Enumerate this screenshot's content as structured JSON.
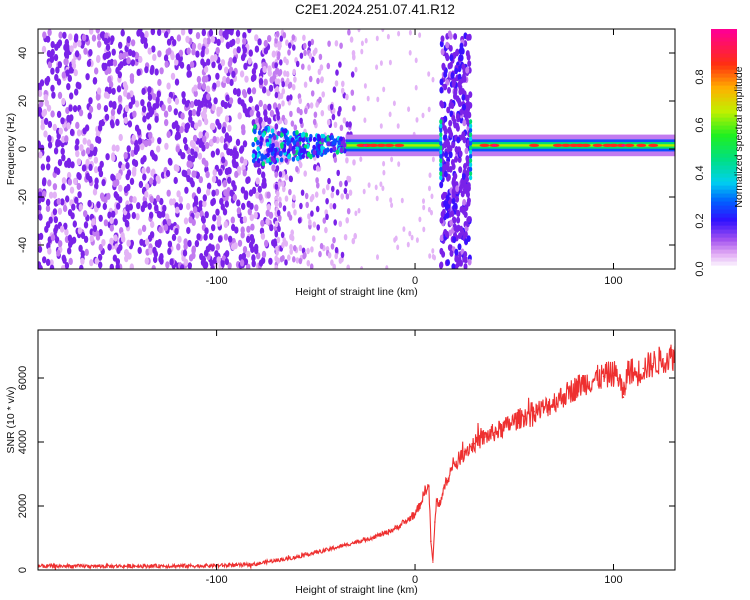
{
  "title": "C2E1.2024.251.07.41.R12",
  "colors": {
    "snr_line": "#ee3030",
    "spectrum_purple": "#7a22e8",
    "colormap": [
      "#ffffff",
      "#e3b3f6",
      "#c27bf0",
      "#7a22e8",
      "#3a10ff",
      "#0a50ff",
      "#00d8e8",
      "#00e070",
      "#a8f000",
      "#ff9400",
      "#ff2a1e",
      "#ff0090"
    ]
  },
  "chart_data": [
    {
      "type": "heatmap",
      "xlabel": "Height of straight line (km)",
      "ylabel": "Frequency (Hz)",
      "xlim": [
        -190,
        131
      ],
      "ylim": [
        -50,
        50
      ],
      "x_ticks": [
        -100,
        0,
        100
      ],
      "y_ticks": [
        -40,
        -20,
        0,
        20,
        40
      ],
      "grid": false,
      "colorbar": {
        "label": "Normalized spectral amplitude",
        "range": [
          0,
          1
        ],
        "ticks": [
          0.0,
          0.2,
          0.4,
          0.6,
          0.8
        ]
      },
      "dense_noise_x_range": [
        -190,
        -70
      ],
      "fading_noise_x_range": [
        -70,
        -30
      ],
      "dense_noise_band": {
        "x_range": [
          13,
          28
        ],
        "y_range": [
          -50,
          48
        ]
      },
      "signal_band": {
        "x_range": [
          -82,
          131
        ],
        "center_hz": 1.5,
        "half_width_hz": 2.5
      },
      "signal_break": {
        "x_range": [
          13,
          28
        ]
      }
    },
    {
      "type": "line",
      "xlabel": "Height of straight line (km)",
      "ylabel": "SNR (10 * v/v)",
      "xlim": [
        -190,
        131
      ],
      "ylim": [
        0,
        7500
      ],
      "x_ticks": [
        -100,
        0,
        100
      ],
      "y_ticks": [
        0,
        2000,
        4000,
        6000
      ],
      "grid": false,
      "series": [
        {
          "x": [
            -190,
            -150,
            -110,
            -90,
            -80,
            -75,
            -70,
            -65,
            -60,
            -55,
            -50,
            -45,
            -40,
            -35,
            -30,
            -25,
            -20,
            -15,
            -10,
            -5,
            0,
            3,
            5,
            7,
            8,
            9,
            10,
            11,
            12,
            14,
            16,
            18,
            20,
            25,
            30,
            35,
            40,
            45,
            50,
            55,
            60,
            65,
            70,
            75,
            80,
            85,
            90,
            95,
            100,
            103,
            105,
            107,
            109,
            111,
            115,
            120,
            125,
            131
          ],
          "y": [
            120,
            120,
            130,
            150,
            180,
            250,
            300,
            350,
            400,
            480,
            550,
            620,
            700,
            780,
            870,
            950,
            1050,
            1150,
            1300,
            1500,
            1750,
            2100,
            2500,
            2600,
            900,
            250,
            1500,
            2200,
            2000,
            2400,
            2800,
            3100,
            3300,
            3700,
            3950,
            4150,
            4300,
            4450,
            4650,
            4800,
            4950,
            5050,
            5250,
            5450,
            5650,
            5850,
            5950,
            6050,
            6150,
            6000,
            5400,
            6200,
            6250,
            6100,
            6300,
            6450,
            6600,
            6700
          ]
        }
      ]
    }
  ]
}
